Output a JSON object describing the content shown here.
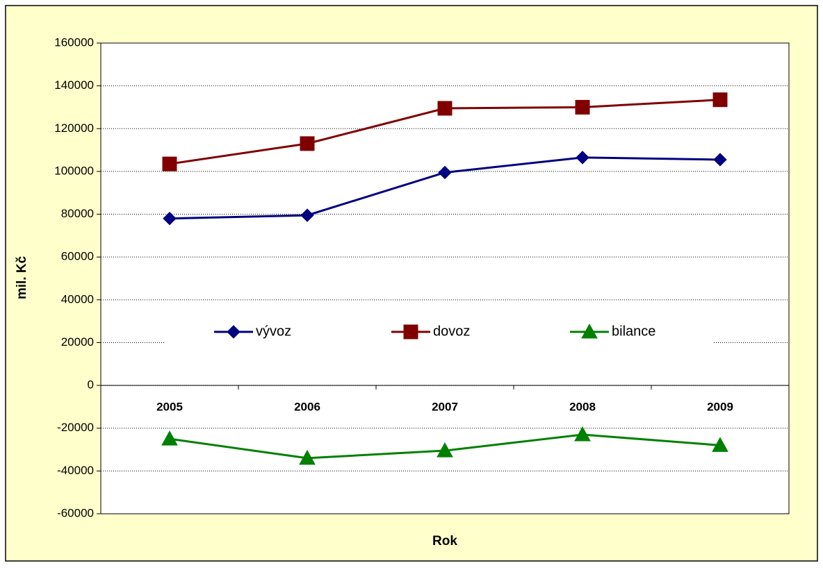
{
  "chart_data": {
    "type": "line",
    "x_label": "Rok",
    "y_label": "mil. Kč",
    "categories": [
      "2005",
      "2006",
      "2007",
      "2008",
      "2009"
    ],
    "series": [
      {
        "name": "vývoz",
        "color": "#000080",
        "marker": "diamond",
        "values": [
          78000,
          79500,
          99500,
          106500,
          105500
        ]
      },
      {
        "name": "dovoz",
        "color": "#800000",
        "marker": "square",
        "values": [
          103500,
          113000,
          129500,
          130000,
          133500
        ]
      },
      {
        "name": "bilance",
        "color": "#008000",
        "marker": "triangle",
        "values": [
          -25000,
          -34000,
          -30500,
          -23000,
          -28000
        ]
      }
    ],
    "ylim": [
      -60000,
      160000
    ],
    "yticks": [
      -60000,
      -40000,
      -20000,
      0,
      20000,
      40000,
      60000,
      80000,
      100000,
      120000,
      140000,
      160000
    ],
    "grid": true,
    "legend_position": "center"
  }
}
